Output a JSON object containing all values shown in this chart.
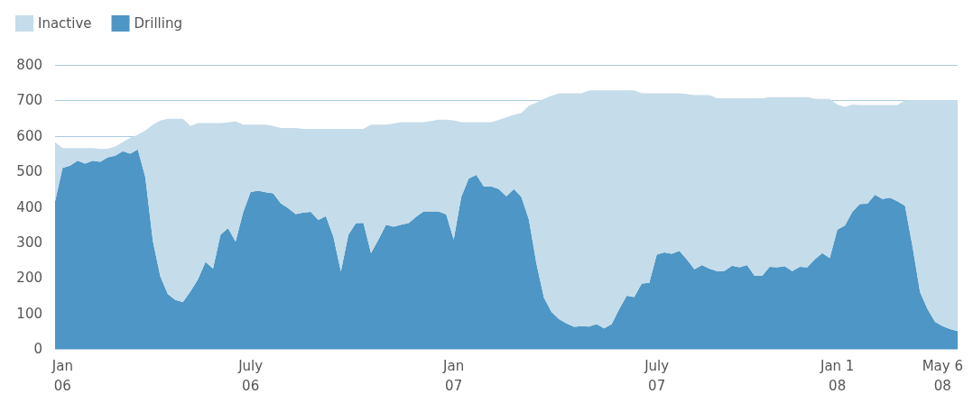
{
  "chart_data": {
    "type": "area",
    "stacked": true,
    "categories": [
      null,
      "Jan\n06",
      null,
      null,
      null,
      null,
      null,
      null,
      null,
      null,
      null,
      null,
      null,
      null,
      null,
      null,
      null,
      null,
      null,
      null,
      null,
      null,
      null,
      null,
      null,
      null,
      "July\n06",
      null,
      null,
      null,
      null,
      null,
      null,
      null,
      null,
      null,
      null,
      null,
      null,
      null,
      null,
      null,
      null,
      null,
      null,
      null,
      null,
      null,
      null,
      null,
      null,
      null,
      null,
      "Jan\n07",
      null,
      null,
      null,
      null,
      null,
      null,
      null,
      null,
      null,
      null,
      null,
      null,
      null,
      null,
      null,
      null,
      null,
      null,
      null,
      null,
      null,
      null,
      null,
      null,
      null,
      null,
      "July\n07",
      null,
      null,
      null,
      null,
      null,
      null,
      null,
      null,
      null,
      null,
      null,
      null,
      null,
      null,
      null,
      null,
      null,
      null,
      null,
      null,
      null,
      null,
      null,
      "Jan 1\n08",
      null,
      null,
      null,
      null,
      null,
      null,
      null,
      null,
      null,
      null,
      null,
      null,
      null,
      "May 6\n08",
      null,
      null
    ],
    "series": [
      {
        "name": "Drilling",
        "color": "#4d96c5",
        "values": [
          415,
          510,
          516,
          530,
          522,
          530,
          527,
          540,
          544,
          557,
          550,
          562,
          484,
          304,
          204,
          154,
          138,
          132,
          162,
          196,
          245,
          226,
          322,
          340,
          302,
          384,
          442,
          446,
          441,
          438,
          410,
          396,
          380,
          384,
          386,
          363,
          374,
          316,
          218,
          322,
          354,
          355,
          270,
          308,
          350,
          344,
          350,
          354,
          372,
          387,
          387,
          387,
          379,
          308,
          428,
          480,
          490,
          458,
          458,
          450,
          430,
          450,
          428,
          364,
          240,
          144,
          104,
          84,
          72,
          62,
          64,
          63,
          70,
          58,
          70,
          112,
          150,
          146,
          184,
          186,
          266,
          272,
          268,
          276,
          252,
          224,
          236,
          226,
          219,
          220,
          234,
          230,
          236,
          206,
          206,
          231,
          230,
          233,
          219,
          231,
          230,
          252,
          270,
          256,
          336,
          347,
          386,
          408,
          409,
          434,
          422,
          426,
          416,
          403,
          288,
          160,
          112,
          76,
          64,
          56,
          50
        ]
      },
      {
        "name": "Inactive",
        "color": "#c5dcea",
        "values": [
          167,
          56,
          50,
          36,
          44,
          36,
          36,
          24,
          26,
          25,
          45,
          41,
          131,
          328,
          439,
          494,
          510,
          516,
          466,
          440,
          391,
          410,
          314,
          298,
          339,
          248,
          190,
          186,
          191,
          190,
          212,
          226,
          242,
          236,
          234,
          257,
          246,
          304,
          402,
          298,
          266,
          265,
          362,
          324,
          282,
          291,
          289,
          285,
          267,
          252,
          255,
          259,
          267,
          336,
          211,
          159,
          149,
          181,
          181,
          195,
          223,
          210,
          237,
          321,
          454,
          561,
          609,
          636,
          648,
          658,
          656,
          665,
          658,
          670,
          658,
          616,
          578,
          582,
          536,
          534,
          454,
          448,
          452,
          444,
          466,
          491,
          479,
          489,
          487,
          486,
          472,
          476,
          470,
          500,
          500,
          478,
          479,
          476,
          490,
          478,
          479,
          453,
          434,
          448,
          352,
          335,
          302,
          279,
          278,
          253,
          265,
          261,
          271,
          297,
          413,
          541,
          589,
          625,
          637,
          645,
          651
        ]
      }
    ],
    "ylim": [
      0,
      800
    ],
    "yticks": [
      0,
      100,
      200,
      300,
      400,
      500,
      600,
      700,
      800
    ],
    "grid": "y",
    "legend": "top left"
  }
}
